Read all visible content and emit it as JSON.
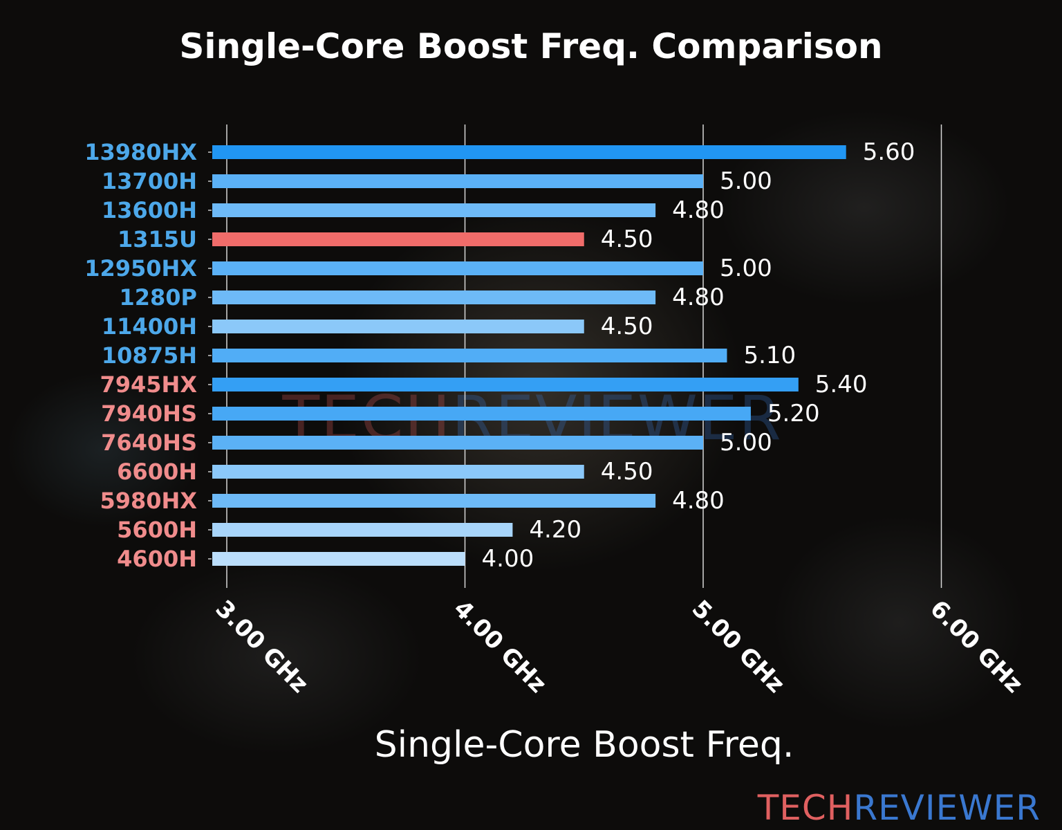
{
  "chart_data": {
    "type": "bar",
    "orientation": "horizontal",
    "title": "Single-Core Boost Freq. Comparison",
    "xlabel": "Single-Core Boost Freq.",
    "ylabel": "",
    "xlim": [
      2.94,
      6.0
    ],
    "xticks": [
      3,
      4,
      5,
      6
    ],
    "xtick_labels": [
      "3.00 GHz",
      "4.00 GHz",
      "5.00 GHz",
      "6.00 GHz"
    ],
    "grid": "vertical",
    "categories": [
      "13980HX",
      "13700H",
      "13600H",
      "1315U",
      "12950HX",
      "1280P",
      "11400H",
      "10875H",
      "7945HX",
      "7940HS",
      "7640HS",
      "6600H",
      "5980HX",
      "5600H",
      "4600H"
    ],
    "values": [
      5.6,
      5.0,
      4.8,
      4.5,
      5.0,
      4.8,
      4.5,
      5.1,
      5.4,
      5.2,
      5.0,
      4.5,
      4.8,
      4.2,
      4.0
    ],
    "value_labels": [
      "5.60",
      "5.00",
      "4.80",
      "4.50",
      "5.00",
      "4.80",
      "4.50",
      "5.10",
      "5.40",
      "5.20",
      "5.00",
      "4.50",
      "4.80",
      "4.20",
      "4.00"
    ],
    "label_groups": [
      "intel",
      "intel",
      "intel",
      "intel",
      "intel",
      "intel",
      "intel",
      "intel",
      "amd",
      "amd",
      "amd",
      "amd",
      "amd",
      "amd",
      "amd"
    ],
    "highlighted": "1315U"
  },
  "colors": {
    "intel_label": "#4DA8EA",
    "amd_label": "#F08C8C",
    "highlight_bar": "#F06C6A",
    "bar_dark": "#2196F3",
    "bar_light": "#BBDEFB",
    "grid": "#d8d8d8",
    "logo_tech": "#E06060",
    "logo_reviewer": "#3A78D0"
  },
  "watermark": {
    "tech": "TECH",
    "reviewer": "REVIEWER"
  },
  "logo": {
    "tech": "TECH",
    "reviewer": "REVIEWER"
  }
}
